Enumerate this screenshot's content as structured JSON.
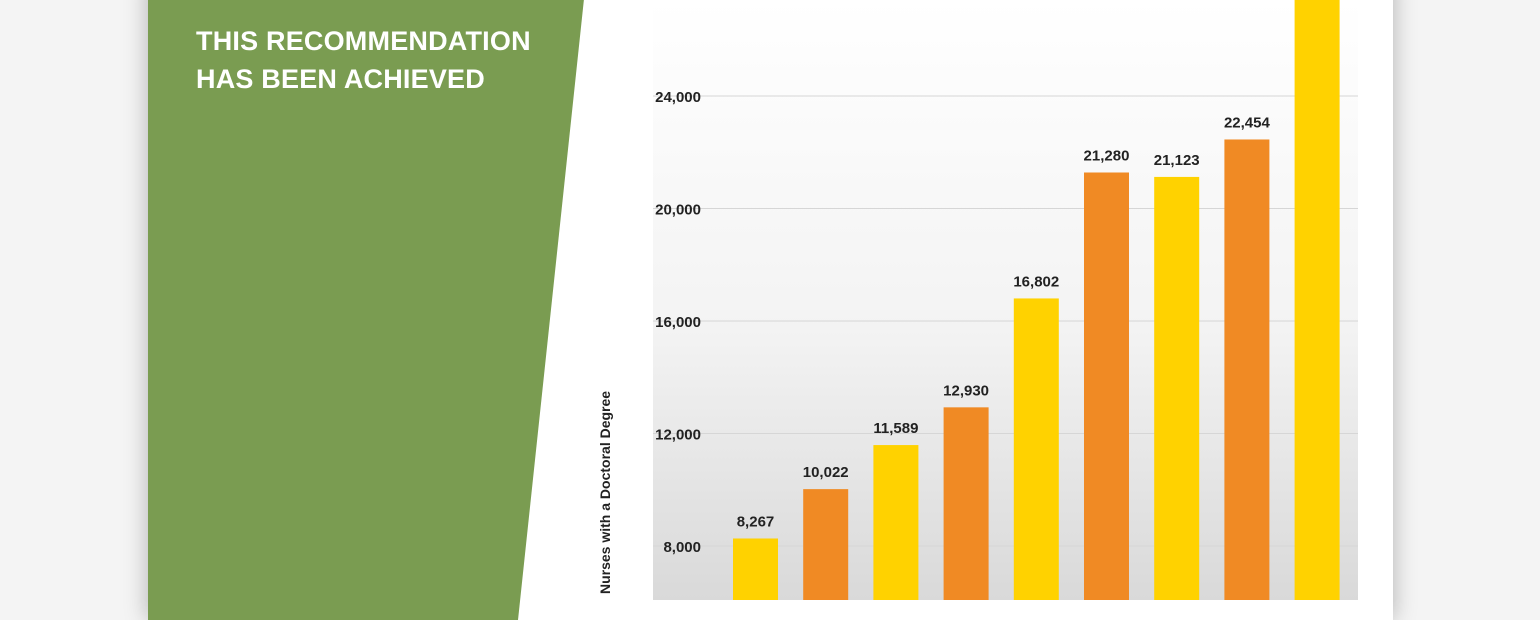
{
  "banner": {
    "line1": "THIS RECOMMENDATION",
    "line2": "HAS BEEN ACHIEVED",
    "color": "#7a9c51"
  },
  "chart_data": {
    "type": "bar",
    "title": "",
    "xlabel": "",
    "ylabel": "Nurses with a Doctoral Degree",
    "ylim": [
      6500,
      28000
    ],
    "yticks": [
      8000,
      12000,
      16000,
      20000,
      24000
    ],
    "ytick_labels": [
      "8,000",
      "12,000",
      "16,000",
      "20,000",
      "24,000"
    ],
    "grid": true,
    "values": [
      8267,
      10022,
      11589,
      12930,
      16802,
      21280,
      21123,
      22454,
      28500
    ],
    "data_labels": [
      "8,267",
      "10,022",
      "11,589",
      "12,930",
      "16,802",
      "21,280",
      "21,123",
      "22,454",
      ""
    ],
    "colors": [
      "#ffd200",
      "#f08a24",
      "#ffd200",
      "#f08a24",
      "#ffd200",
      "#f08a24",
      "#ffd200",
      "#f08a24",
      "#ffd200"
    ]
  }
}
